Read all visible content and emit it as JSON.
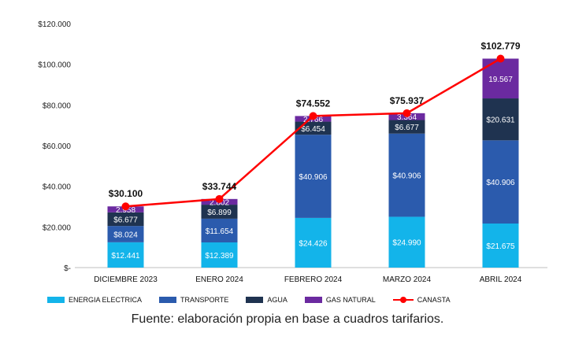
{
  "chart_data": {
    "type": "bar",
    "stacked": true,
    "categories": [
      "DICIEMBRE 2023",
      "ENERO 2024",
      "FEBRERO 2024",
      "MARZO 2024",
      "ABRIL 2024"
    ],
    "y_ticks": [
      "$-",
      "$20.000",
      "$40.000",
      "$60.000",
      "$80.000",
      "$100.000",
      "$120.000"
    ],
    "ylim": [
      0,
      120000
    ],
    "series": [
      {
        "name": "ENERGIA ELECTRICA",
        "color": "#13b4ea",
        "values": [
          12441,
          12389,
          24426,
          24990,
          21675
        ],
        "labels": [
          "$12.441",
          "$12.389",
          "$24.426",
          "$24.990",
          "$21.675"
        ]
      },
      {
        "name": "TRANSPORTE",
        "color": "#2b5bad",
        "values": [
          8024,
          11654,
          40906,
          40906,
          40906
        ],
        "labels": [
          "$8.024",
          "$11.654",
          "$40.906",
          "$40.906",
          "$40.906"
        ]
      },
      {
        "name": "AGUA",
        "color": "#1f3350",
        "values": [
          6677,
          6899,
          6454,
          6677,
          20631
        ],
        "labels": [
          "$6.677",
          "$6.899",
          "$6.454",
          "$6.677",
          "$20.631"
        ]
      },
      {
        "name": "GAS NATURAL",
        "color": "#6b2aa0",
        "values": [
          2958,
          2802,
          2766,
          3364,
          19567
        ],
        "labels": [
          "2.958",
          "2.802",
          "2.766",
          "3.364",
          "19.567"
        ]
      }
    ],
    "line": {
      "name": "CANASTA",
      "color": "#ff0000",
      "values": [
        30100,
        33744,
        74552,
        75937,
        102779
      ],
      "labels": [
        "$30.100",
        "$33.744",
        "$74.552",
        "$75.937",
        "$102.779"
      ]
    },
    "legend_position": "bottom"
  },
  "source_note": "Fuente: elaboración propia en base a cuadros tarifarios."
}
